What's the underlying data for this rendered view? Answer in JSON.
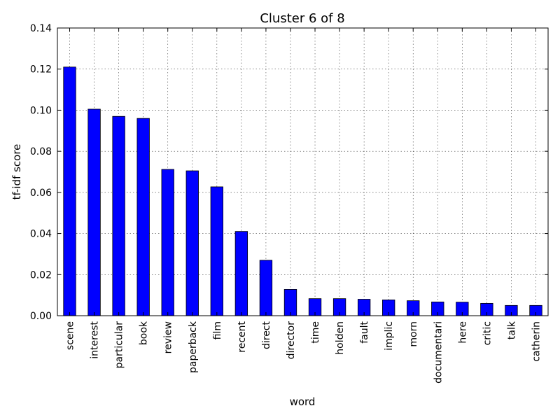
{
  "chart_data": {
    "type": "bar",
    "title": "Cluster 6 of 8",
    "xlabel": "word",
    "ylabel": "tf-idf score",
    "ylim": [
      0,
      0.14
    ],
    "yticks": [
      "0.00",
      "0.02",
      "0.04",
      "0.06",
      "0.08",
      "0.10",
      "0.12",
      "0.14"
    ],
    "grid": true,
    "bar_color": "#0000ff",
    "categories": [
      "scene",
      "interest",
      "particular",
      "book",
      "review",
      "paperback",
      "film",
      "recent",
      "direct",
      "director",
      "time",
      "holden",
      "fault",
      "implic",
      "morn",
      "documentari",
      "here",
      "critic",
      "talk",
      "catherin"
    ],
    "values": [
      0.121,
      0.1005,
      0.097,
      0.096,
      0.0712,
      0.0705,
      0.0627,
      0.041,
      0.027,
      0.0128,
      0.0083,
      0.0083,
      0.008,
      0.0077,
      0.0073,
      0.0067,
      0.0066,
      0.006,
      0.005,
      0.005
    ]
  }
}
